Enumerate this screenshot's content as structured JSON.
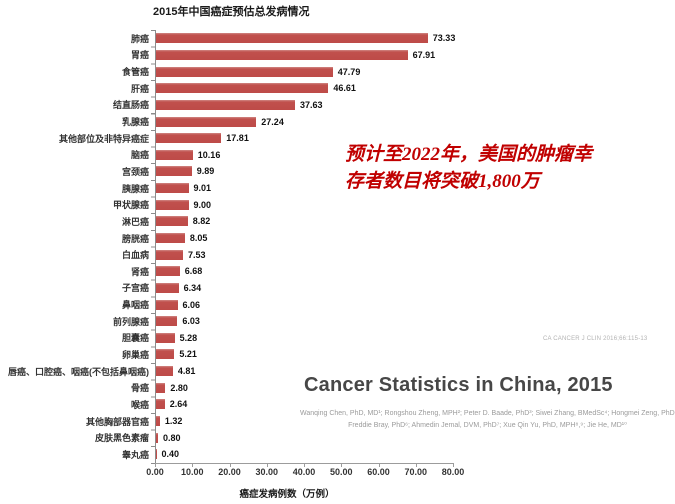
{
  "chart_data": {
    "type": "bar",
    "orientation": "horizontal",
    "title": "2015年中国癌症预估总发病情况",
    "xlabel": "癌症发病例数（万例）",
    "xlim": [
      0,
      80
    ],
    "x_ticks": [
      "0.00",
      "10.00",
      "20.00",
      "30.00",
      "40.00",
      "50.00",
      "60.00",
      "70.00",
      "80.00"
    ],
    "grid": false,
    "legend": false,
    "bar_color": "#be4b48",
    "categories": [
      "肺癌",
      "胃癌",
      "食管癌",
      "肝癌",
      "结直肠癌",
      "乳腺癌",
      "其他部位及非特异癌症",
      "脑癌",
      "宫颈癌",
      "胰腺癌",
      "甲状腺癌",
      "淋巴癌",
      "膀胱癌",
      "白血病",
      "肾癌",
      "子宫癌",
      "鼻咽癌",
      "前列腺癌",
      "胆囊癌",
      "卵巢癌",
      "唇癌、口腔癌、咽癌(不包括鼻咽癌)",
      "骨癌",
      "喉癌",
      "其他胸部器官癌",
      "皮肤黑色素瘤",
      "睾丸癌"
    ],
    "values": [
      73.33,
      67.91,
      47.79,
      46.61,
      37.63,
      27.24,
      17.81,
      10.16,
      9.89,
      9.01,
      9.0,
      8.82,
      8.05,
      7.53,
      6.68,
      6.34,
      6.06,
      6.03,
      5.28,
      5.21,
      4.81,
      2.8,
      2.64,
      1.32,
      0.8,
      0.4
    ]
  },
  "annotation": {
    "line1": "预计至2022年，美国的肿瘤幸",
    "line2": "存者数目将突破1,800万",
    "color": "#c00000"
  },
  "paper": {
    "journal_ref": "CA CANCER J CLIN 2016;66:115-13",
    "title": "Cancer Statistics in China, 2015",
    "authors_line1": "Wanqing Chen, PhD, MD¹; Rongshou Zheng, MPH²; Peter D. Baade, PhD³; Siwei Zhang, BMedSc⁴; Hongmei Zeng, PhD, MD⁵;",
    "authors_line2": "Freddie Bray, PhD⁶; Ahmedin Jemal, DVM, PhD⁷; Xue Qin Yu, PhD, MPH⁸,⁹; Jie He, MD¹⁰"
  }
}
